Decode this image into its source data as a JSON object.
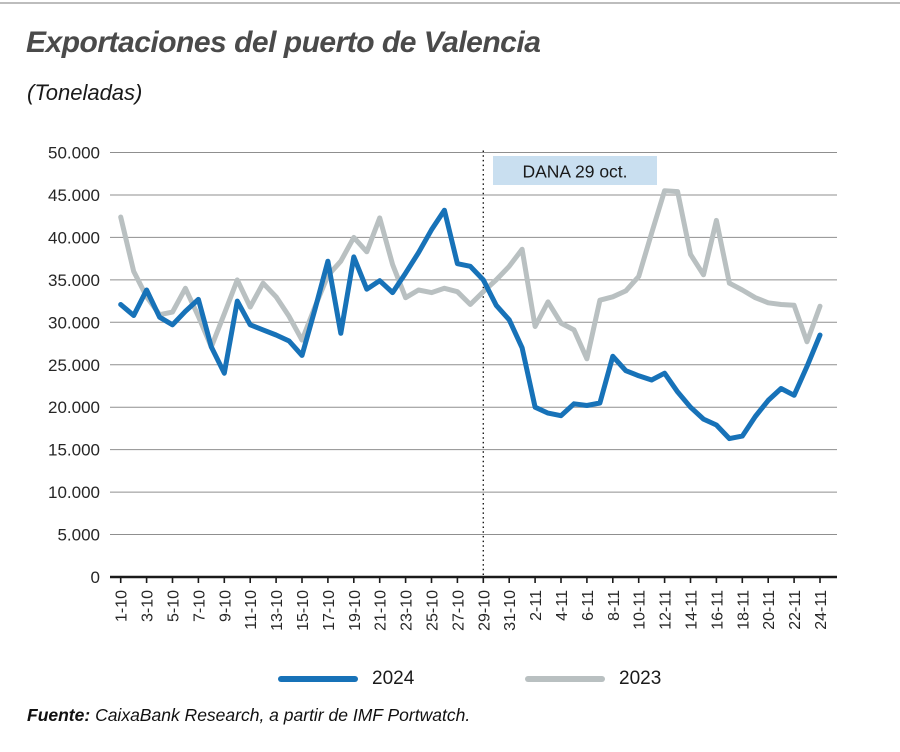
{
  "header": {
    "title": "Exportaciones del puerto de Valencia",
    "subtitle": "(Toneladas)"
  },
  "annotation": {
    "label": "DANA 29 oct.",
    "box_color": "#c9dff0",
    "text_color": "#1a1a1a",
    "marked_tick": "29-10"
  },
  "legend": {
    "items": [
      {
        "label": "2024",
        "color": "#1772b8"
      },
      {
        "label": "2023",
        "color": "#b9c0c1"
      }
    ]
  },
  "source": {
    "label": "Fuente:",
    "text": " CaixaBank Research, a partir de IMF Portwatch."
  },
  "chart_data": {
    "type": "line",
    "title": "Exportaciones del puerto de Valencia (Toneladas)",
    "ylim": [
      0,
      50000
    ],
    "grid": true,
    "y_tick_labels": [
      "0",
      "5.000",
      "10.000",
      "15.000",
      "20.000",
      "25.000",
      "30.000",
      "35.000",
      "40.000",
      "45.000",
      "50.000"
    ],
    "x_tick_labels": [
      "1-10",
      "3-10",
      "5-10",
      "7-10",
      "9-10",
      "11-10",
      "13-10",
      "15-10",
      "17-10",
      "19-10",
      "21-10",
      "23-10",
      "25-10",
      "27-10",
      "29-10",
      "31-10",
      "2-11",
      "4-11",
      "6-11",
      "8-11",
      "10-11",
      "12-11",
      "14-11",
      "16-11",
      "18-11",
      "20-11",
      "22-11",
      "24-11"
    ],
    "x_tick_every": 2,
    "annotation_point_index": 28,
    "legend_position": "bottom",
    "series": [
      {
        "name": "2024",
        "color": "#1772b8",
        "values": [
          32100,
          30800,
          33800,
          30600,
          29700,
          31300,
          32700,
          27100,
          24000,
          32500,
          29700,
          29100,
          28500,
          27800,
          26100,
          31500,
          37200,
          28700,
          37700,
          33900,
          34900,
          33500,
          35800,
          38200,
          40900,
          43200,
          36900,
          36600,
          35000,
          32000,
          30300,
          27000,
          20000,
          19300,
          19000,
          20400,
          20200,
          20500,
          26000,
          24300,
          23700,
          23200,
          24000,
          21800,
          20000,
          18600,
          17900,
          16300,
          16600,
          18900,
          20800,
          22200,
          21400,
          24800,
          28500
        ]
      },
      {
        "name": "2023",
        "color": "#b9c0c1",
        "values": [
          42400,
          36000,
          33000,
          30900,
          31200,
          34000,
          30700,
          27100,
          31000,
          35000,
          31800,
          34600,
          33000,
          30700,
          27900,
          31800,
          35500,
          37200,
          40000,
          38300,
          42300,
          36800,
          32900,
          33800,
          33500,
          34000,
          33600,
          32100,
          33600,
          35000,
          36600,
          38600,
          29500,
          32400,
          29900,
          29100,
          25700,
          32600,
          33000,
          33700,
          35400,
          40500,
          45500,
          45400,
          38000,
          35600,
          42000,
          34600,
          33800,
          32900,
          32300,
          32100,
          32000,
          27700,
          31900
        ]
      }
    ]
  }
}
